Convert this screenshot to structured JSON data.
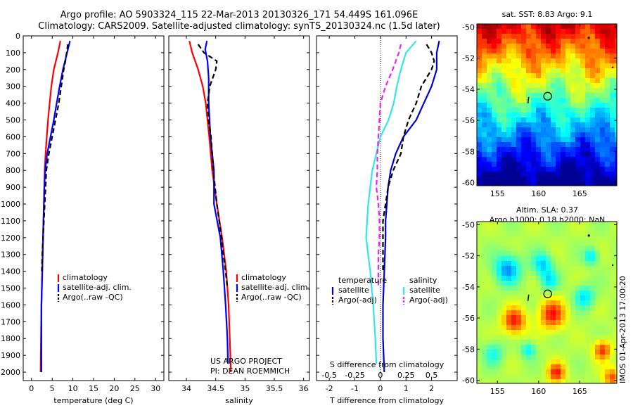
{
  "header": {
    "line1": "Argo profile: AO 5903324_115 22-Mar-2013 20130326_171 54.449S 161.096E",
    "line2": "Climatology: CARS2009. Satellite-adjusted climatology: synTS_20130324.nc (1.5d later)"
  },
  "map_sst": {
    "title": "sat. SST: 8.83 Argo: 9.1"
  },
  "map_sla": {
    "title_line1": "Altim. SLA: 0.37",
    "title_line2": "Argo h1000: 0.18 h2000: NaN"
  },
  "imos_stamp": "IMOS 01-Apr-2013 17:00:20",
  "credit": {
    "line1": "US ARGO PROJECT",
    "line2": "PI: DEAN ROEMMICH"
  },
  "legend_panels": {
    "items": [
      "climatology",
      "satellite-adj. clim.",
      "Argo(..raw -QC)"
    ]
  },
  "legend_diff": {
    "temperature_header": "temperature",
    "salinity_header": "salinity",
    "satellite": "satellite",
    "argo": "Argo(-adj)"
  },
  "colors": {
    "climatology": "#ff0000",
    "satellite": "#0000ff",
    "argo": "#000000",
    "t_sat": "#0000cc",
    "s_sat": "#33e6e6",
    "s_argo": "#ee22ee"
  },
  "chart_data": [
    {
      "type": "line",
      "xlabel": "temperature (deg C)",
      "ylabel": "",
      "xlim": [
        -2,
        32
      ],
      "ylim": [
        2050,
        0
      ],
      "xticks": [
        0,
        5,
        10,
        15,
        20,
        25,
        30
      ],
      "yticks": [
        0,
        100,
        200,
        300,
        400,
        500,
        600,
        700,
        800,
        900,
        1000,
        1100,
        1200,
        1300,
        1400,
        1500,
        1600,
        1700,
        1800,
        1900,
        2000
      ],
      "series": [
        {
          "name": "climatology",
          "depth": [
            30,
            100,
            200,
            300,
            400,
            500,
            600,
            700,
            800,
            900,
            1000,
            1200,
            1400,
            1600,
            1800,
            2000
          ],
          "values": [
            7.0,
            6.4,
            5.4,
            4.8,
            4.4,
            4.0,
            3.7,
            3.4,
            3.2,
            3.1,
            3.0,
            2.8,
            2.6,
            2.4,
            2.3,
            2.2
          ]
        },
        {
          "name": "satellite-adj. clim.",
          "depth": [
            30,
            100,
            200,
            300,
            400,
            500,
            600,
            700,
            800,
            900,
            1000,
            1200,
            1400,
            1600,
            1800,
            2000
          ],
          "values": [
            9.3,
            8.6,
            7.6,
            6.8,
            6.1,
            5.4,
            4.6,
            3.8,
            3.3,
            3.1,
            3.0,
            2.8,
            2.6,
            2.4,
            2.4,
            2.4
          ]
        },
        {
          "name": "Argo(..raw -QC)",
          "depth": [
            50,
            100,
            150,
            200,
            300,
            400,
            500,
            600,
            700,
            800,
            900,
            1000,
            1100,
            1200,
            1300,
            1400
          ],
          "values": [
            8.8,
            8.5,
            8.2,
            7.8,
            7.2,
            6.6,
            5.8,
            5.0,
            4.2,
            3.6,
            3.4,
            3.2,
            3.0,
            2.8,
            2.6,
            2.5
          ]
        }
      ]
    },
    {
      "type": "line",
      "xlabel": "salinity",
      "ylabel": "",
      "xlim": [
        33.7,
        36.1
      ],
      "ylim": [
        2050,
        0
      ],
      "xticks": [
        34,
        34.5,
        35,
        35.5,
        36
      ],
      "series": [
        {
          "name": "climatology",
          "depth": [
            30,
            100,
            200,
            300,
            400,
            600,
            800,
            1000,
            1200,
            1400,
            1600,
            1800,
            2000
          ],
          "values": [
            34.05,
            34.1,
            34.2,
            34.28,
            34.33,
            34.39,
            34.44,
            34.52,
            34.61,
            34.68,
            34.72,
            34.74,
            34.76
          ]
        },
        {
          "name": "satellite-adj. clim.",
          "depth": [
            30,
            80,
            150,
            250,
            400,
            600,
            800,
            1000,
            1200,
            1400,
            1600,
            1800,
            1950
          ],
          "values": [
            34.35,
            34.32,
            34.36,
            34.38,
            34.38,
            34.41,
            34.47,
            34.47,
            34.58,
            34.63,
            34.67,
            34.7,
            34.71
          ]
        },
        {
          "name": "Argo(..raw -QC)",
          "depth": [
            50,
            100,
            150,
            200,
            300,
            400,
            500,
            600,
            700,
            800,
            1000,
            1100,
            1200,
            1300,
            1400,
            1500
          ],
          "values": [
            34.2,
            34.3,
            34.52,
            34.5,
            34.4,
            34.36,
            34.38,
            34.42,
            34.44,
            34.46,
            34.52,
            34.56,
            34.6,
            34.63,
            34.67,
            34.7
          ]
        }
      ]
    },
    {
      "type": "line",
      "xlabel": "T difference from climatology",
      "x2label": "S difference from climatology",
      "ylabel": "",
      "xlim": [
        -2.5,
        3.0
      ],
      "x2lim": [
        -0.625,
        0.75
      ],
      "ylim": [
        2050,
        0
      ],
      "xticks": [
        -2,
        -1,
        0,
        1,
        2
      ],
      "x2ticks": [
        -0.5,
        -0.25,
        0,
        0.25,
        0.5
      ],
      "series": [
        {
          "name": "temperature satellite",
          "depth": [
            30,
            100,
            200,
            300,
            400,
            500,
            600,
            700,
            800,
            900,
            1000,
            1100,
            1200,
            1400,
            1600,
            1800,
            2000
          ],
          "values": [
            2.3,
            2.2,
            2.2,
            2.0,
            1.7,
            1.4,
            0.9,
            0.6,
            0.4,
            0.3,
            0.25,
            0.2,
            0.2,
            0.15,
            0.1,
            0.1,
            0.15
          ]
        },
        {
          "name": "temperature Argo(-adj)",
          "depth": [
            50,
            100,
            150,
            200,
            300,
            400,
            500,
            600,
            700,
            800,
            900,
            1000,
            1100,
            1200,
            1300,
            1400
          ],
          "values": [
            1.8,
            2.0,
            2.1,
            2.0,
            1.6,
            1.4,
            1.1,
            0.9,
            0.8,
            0.5,
            0.3,
            0.2,
            0.1,
            0.1,
            0.1,
            0.1
          ]
        },
        {
          "name": "salinity satellite",
          "depth": [
            30,
            100,
            200,
            300,
            400,
            500,
            600,
            700,
            800,
            900,
            1000,
            1200,
            1400,
            1600,
            1800,
            1950
          ],
          "values": [
            0.35,
            0.25,
            0.2,
            0.16,
            0.13,
            0.08,
            0.0,
            -0.04,
            -0.08,
            -0.1,
            -0.12,
            -0.14,
            -0.1,
            -0.07,
            -0.05,
            -0.04
          ]
        },
        {
          "name": "salinity Argo(-adj)",
          "depth": [
            50,
            100,
            150,
            200,
            300,
            400,
            500,
            600,
            700,
            800,
            900,
            1000,
            1100,
            1200,
            1300,
            1400,
            1500
          ],
          "values": [
            0.2,
            0.18,
            0.15,
            0.12,
            0.05,
            0.0,
            -0.01,
            -0.02,
            -0.03,
            -0.03,
            -0.04,
            -0.02,
            -0.01,
            -0.01,
            -0.02,
            -0.02,
            -0.02
          ]
        }
      ]
    },
    {
      "type": "heatmap",
      "title": "sat. SST: 8.83 Argo: 9.1",
      "xlim": [
        152.5,
        169.5
      ],
      "ylim": [
        -60.2,
        -49.8
      ],
      "xticks": [
        155,
        160,
        165
      ],
      "yticks": [
        -50,
        -52,
        -54,
        -56,
        -58,
        -60
      ],
      "argo_position": {
        "lon": 161.1,
        "lat": -54.45
      }
    },
    {
      "type": "heatmap",
      "title": "Altim. SLA: 0.37",
      "xlim": [
        152.5,
        169.5
      ],
      "ylim": [
        -60.2,
        -49.8
      ],
      "xticks": [
        155,
        160,
        165
      ],
      "yticks": [
        -50,
        -52,
        -54,
        -56,
        -58,
        -60
      ],
      "argo_position": {
        "lon": 161.1,
        "lat": -54.45
      }
    }
  ]
}
